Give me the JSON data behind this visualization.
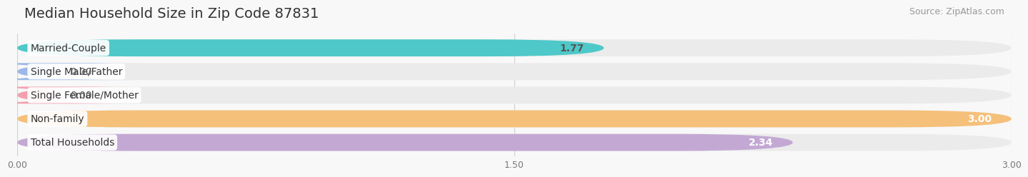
{
  "title": "Median Household Size in Zip Code 87831",
  "source": "Source: ZipAtlas.com",
  "categories": [
    "Married-Couple",
    "Single Male/Father",
    "Single Female/Mother",
    "Non-family",
    "Total Households"
  ],
  "values": [
    1.77,
    0.0,
    0.0,
    3.0,
    2.34
  ],
  "bar_colors": [
    "#4EC8C8",
    "#9BB8E8",
    "#F4A0B0",
    "#F5C07A",
    "#C3A8D4"
  ],
  "bar_bg_color": "#EBEBEB",
  "xlim": [
    0,
    3.0
  ],
  "xticks": [
    0.0,
    1.5,
    3.0
  ],
  "xtick_labels": [
    "0.00",
    "1.50",
    "3.00"
  ],
  "value_labels": [
    "1.77",
    "0.00",
    "0.00",
    "3.00",
    "2.34"
  ],
  "value_label_colors": [
    "#555555",
    "#555555",
    "#555555",
    "#ffffff",
    "#ffffff"
  ],
  "value_outside": [
    false,
    true,
    true,
    false,
    false
  ],
  "title_fontsize": 14,
  "source_fontsize": 9,
  "label_fontsize": 10,
  "value_fontsize": 10,
  "background_color": "#F8F8F8",
  "bar_height": 0.72,
  "grid_color": "#D0D0D0"
}
